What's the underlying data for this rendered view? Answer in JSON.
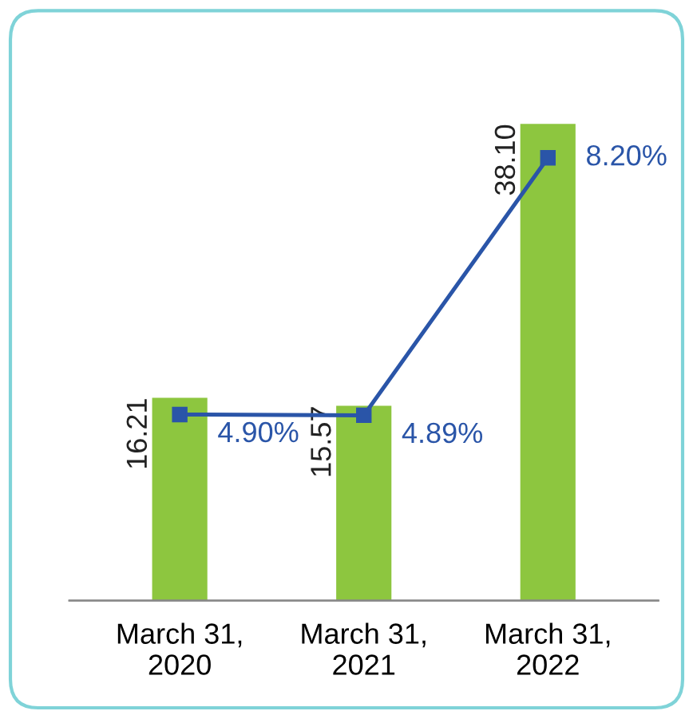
{
  "chart_data": {
    "type": "bar",
    "categories": [
      "March 31,\n2020",
      "March 31,\n2021",
      "March 31,\n2022"
    ],
    "series": [
      {
        "color": "#8dc63f",
        "values": [
          16.21,
          15.57,
          38.1
        ],
        "value_labels": [
          "16.21",
          "15.57",
          "38.10"
        ]
      },
      {
        "type": "line",
        "axis": "y2",
        "color": "#2a55a8",
        "marker": "square",
        "values": [
          4.9,
          4.89,
          8.2
        ],
        "value_labels": [
          "4.90%",
          "4.89%",
          "8.20%"
        ]
      }
    ],
    "tick_labels": "x",
    "grid": false,
    "legend": false
  }
}
